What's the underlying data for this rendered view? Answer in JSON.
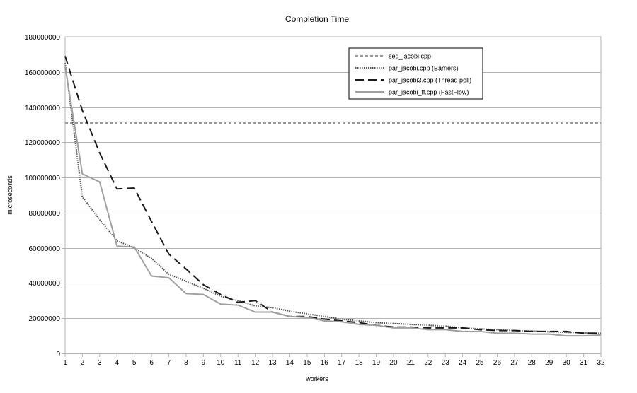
{
  "chart_data": {
    "type": "line",
    "title": "Completion Time",
    "xlabel": "workers",
    "ylabel": "microseconds",
    "x": [
      1,
      2,
      3,
      4,
      5,
      6,
      7,
      8,
      9,
      10,
      11,
      12,
      13,
      14,
      15,
      16,
      17,
      18,
      19,
      20,
      21,
      22,
      23,
      24,
      25,
      26,
      27,
      28,
      29,
      30,
      31,
      32
    ],
    "xlim": [
      1,
      32
    ],
    "ylim": [
      0,
      180000000
    ],
    "yticks": [
      0,
      20000000,
      40000000,
      60000000,
      80000000,
      100000000,
      120000000,
      140000000,
      160000000,
      180000000
    ],
    "grid": "horizontal",
    "legend_position": "top-right",
    "series": [
      {
        "name": "seq_jacobi.cpp",
        "style": "dashed-short",
        "color": "#999999",
        "values": [
          131000000,
          131000000,
          131000000,
          131000000,
          131000000,
          131000000,
          131000000,
          131000000,
          131000000,
          131000000,
          131000000,
          131000000,
          131000000,
          131000000,
          131000000,
          131000000,
          131000000,
          131000000,
          131000000,
          131000000,
          131000000,
          131000000,
          131000000,
          131000000,
          131000000,
          131000000,
          131000000,
          131000000,
          131000000,
          131000000,
          131000000,
          131000000
        ]
      },
      {
        "name": "par_jacobi.cpp (Barriers)",
        "style": "dotted",
        "color": "#555555",
        "values": [
          165000000,
          89000000,
          76000000,
          64000000,
          60000000,
          54000000,
          45000000,
          41000000,
          37000000,
          32500000,
          30000000,
          27000000,
          26000000,
          24000000,
          22500000,
          21000000,
          19500000,
          18500000,
          17500000,
          17000000,
          16500000,
          16000000,
          15500000,
          14500000,
          14000000,
          13500000,
          13000000,
          12700000,
          12300000,
          12000000,
          11700000,
          11500000
        ]
      },
      {
        "name": "par_jacobi3.cpp (Thread poll)",
        "style": "dashed-long",
        "color": "#1a1a1a",
        "values": [
          169000000,
          138000000,
          114000000,
          93500000,
          94000000,
          75000000,
          56500000,
          48000000,
          39000000,
          33500000,
          29000000,
          30000000,
          23500000,
          21000000,
          21000000,
          19500000,
          18500000,
          17500000,
          16000000,
          15000000,
          15000000,
          14500000,
          14500000,
          14500000,
          13500000,
          13000000,
          13000000,
          12500000,
          12500000,
          12500000,
          11500000,
          11500000
        ]
      },
      {
        "name": "par_jacobi_ff.cpp (FastFlow)",
        "style": "solid",
        "color": "#a0a0a0",
        "values": [
          163000000,
          102000000,
          97500000,
          61000000,
          60500000,
          44000000,
          43000000,
          34000000,
          33500000,
          28000000,
          27500000,
          23500000,
          23500000,
          21000000,
          20500000,
          18500000,
          18000000,
          16500000,
          16000000,
          14500000,
          14500000,
          13500000,
          13500000,
          12500000,
          12500000,
          11500000,
          11500000,
          11000000,
          11000000,
          10000000,
          10000000,
          10500000
        ]
      }
    ]
  }
}
